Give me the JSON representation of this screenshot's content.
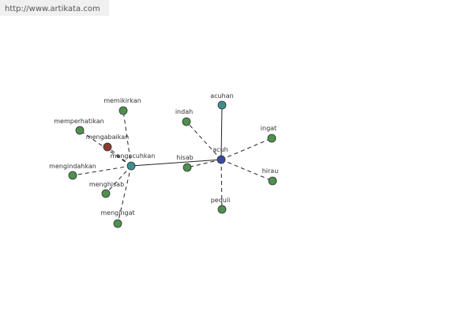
{
  "url": "http://www.artikata.com",
  "nodes": [
    {
      "label": "acuh"
    },
    {
      "label": "mengacuhkan"
    },
    {
      "label": "memikirkan"
    },
    {
      "label": "memperhatikan"
    },
    {
      "label": "mengabaikan"
    },
    {
      "label": "mengindahkan"
    },
    {
      "label": "menghisab"
    },
    {
      "label": "mengingat"
    },
    {
      "label": "indah"
    },
    {
      "label": "acuhan"
    },
    {
      "label": "ingat"
    },
    {
      "label": "hisab"
    },
    {
      "label": "hirau"
    },
    {
      "label": "peduli"
    }
  ]
}
